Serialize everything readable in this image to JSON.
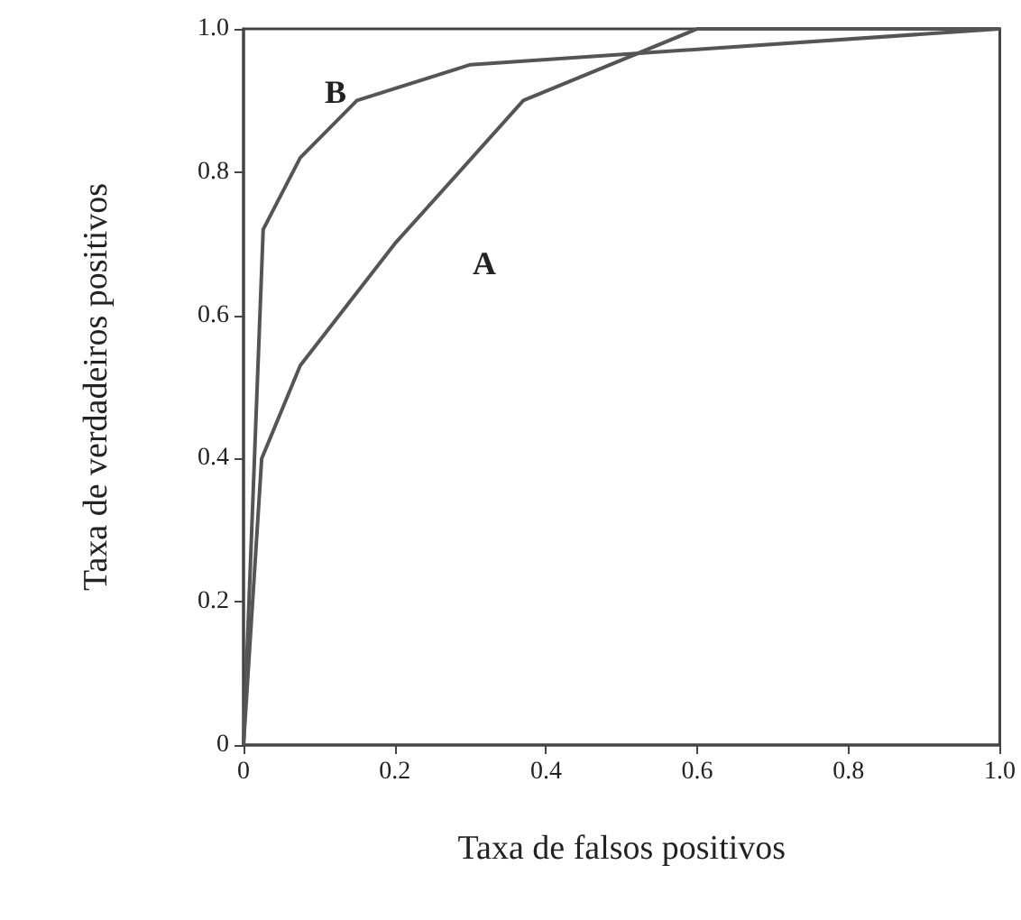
{
  "chart_data": {
    "type": "line",
    "xlabel": "Taxa de falsos positivos",
    "ylabel": "Taxa de verdadeiros positivos",
    "series": [
      {
        "color": "#555555",
        "x": [
          0,
          0.026,
          0.075,
          0.15,
          0.3,
          1.0
        ],
        "values": [
          0,
          0.72,
          0.82,
          0.9,
          0.95,
          1.0
        ]
      },
      {
        "color": "#555555",
        "x": [
          0,
          0.024,
          0.075,
          0.2,
          0.37,
          0.6,
          1.0
        ],
        "values": [
          0,
          0.4,
          0.53,
          0.7,
          0.9,
          1.0,
          1.0
        ]
      }
    ],
    "annotations": [
      "B",
      "A"
    ],
    "xlim": [
      0,
      1
    ],
    "ylim": [
      0,
      1
    ],
    "xticks": [
      0,
      0.2,
      0.4,
      0.6,
      0.8,
      {
        "value": 1,
        "label": "1.0"
      }
    ],
    "yticks": [
      0,
      0.2,
      0.4,
      0.6,
      0.8,
      {
        "value": 1,
        "label": "1.0"
      }
    ],
    "grid": false,
    "marker": "none",
    "line_style": "solid"
  }
}
